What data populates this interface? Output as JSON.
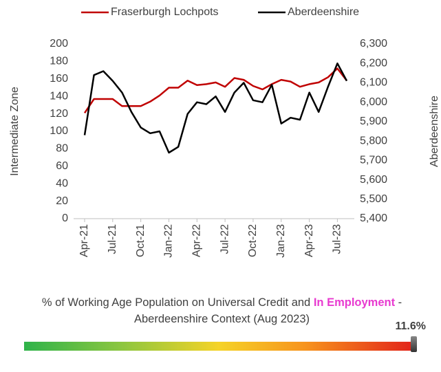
{
  "chart_data": {
    "type": "line",
    "y_label": "Intermediate Zone",
    "y2_label": "Aberdeenshire",
    "categories": [
      "Apr-21",
      null,
      null,
      "Jul-21",
      null,
      null,
      "Oct-21",
      null,
      null,
      "Jan-22",
      null,
      null,
      "Apr-22",
      null,
      null,
      "Jul-22",
      null,
      null,
      "Oct-22",
      null,
      null,
      "Jan-23",
      null,
      null,
      "Apr-23",
      null,
      null,
      "Jul-23",
      null
    ],
    "series": [
      {
        "name": "Fraserburgh Lochpots",
        "color": "#c00000",
        "values": [
          121,
          137,
          137,
          137,
          129,
          129,
          129,
          134,
          141,
          150,
          150,
          158,
          153,
          154,
          156,
          151,
          161,
          159,
          152,
          148,
          154,
          159,
          157,
          151,
          154,
          156,
          162,
          172,
          158
        ]
      },
      {
        "name": "Aberdeenshire",
        "color": "#000000",
        "axis": "y2",
        "values": [
          5830,
          6140,
          6160,
          6110,
          6050,
          5950,
          5870,
          5840,
          5850,
          5740,
          5770,
          5940,
          6000,
          5990,
          6030,
          5950,
          6050,
          6100,
          6010,
          6000,
          6090,
          5890,
          5920,
          5910,
          6050,
          5950,
          6080,
          6200,
          6110
        ]
      }
    ],
    "ylim": [
      0,
      200
    ],
    "yticks": [
      0,
      20,
      40,
      60,
      80,
      100,
      120,
      140,
      160,
      180,
      200
    ],
    "y2lim": [
      5400,
      6300
    ],
    "y2ticks": [
      {
        "value": 5400,
        "label": "5,400"
      },
      {
        "value": 5500,
        "label": "5,500"
      },
      {
        "value": 5600,
        "label": "5,600"
      },
      {
        "value": 5700,
        "label": "5,700"
      },
      {
        "value": 5800,
        "label": "5,800"
      },
      {
        "value": 5900,
        "label": "5,900"
      },
      {
        "value": 6000,
        "label": "6,000"
      },
      {
        "value": 6100,
        "label": "6,100"
      },
      {
        "value": 6200,
        "label": "6,200"
      },
      {
        "value": 6300,
        "label": "6,300"
      }
    ],
    "legend": "top",
    "grid": false
  },
  "context": {
    "title_parts": [
      "% of Working Age Population on Universal Credit and ",
      "In Employment",
      " - Aberdeenshire Context (Aug 2023)"
    ],
    "value_label": "11.6%"
  }
}
